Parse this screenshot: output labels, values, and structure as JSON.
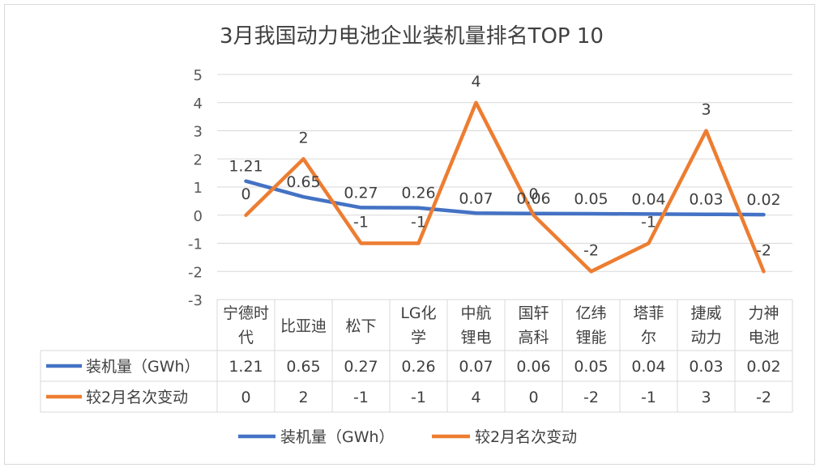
{
  "chart_data": {
    "type": "line",
    "title": "3月我国动力电池企业装机量排名TOP 10",
    "categories": [
      [
        "宁德时",
        "代"
      ],
      [
        "比亚迪"
      ],
      [
        "松下"
      ],
      [
        "LG化",
        "学"
      ],
      [
        "中航",
        "锂电"
      ],
      [
        "国轩",
        "高科"
      ],
      [
        "亿纬",
        "锂能"
      ],
      [
        "塔菲",
        "尔"
      ],
      [
        "捷威",
        "动力"
      ],
      [
        "力神",
        "电池"
      ]
    ],
    "series": [
      {
        "name": "装机量（GWh）",
        "color": "#4472C4",
        "values": [
          1.21,
          0.65,
          0.27,
          0.26,
          0.07,
          0.06,
          0.05,
          0.04,
          0.03,
          0.02
        ],
        "labels": [
          "1.21",
          "0.65",
          "0.27",
          "0.26",
          "0.07",
          "0.06",
          "0.05",
          "0.04",
          "0.03",
          "0.02"
        ]
      },
      {
        "name": "较2月名次变动",
        "color": "#ED7D31",
        "values": [
          0,
          2,
          -1,
          -1,
          4,
          0,
          -2,
          -1,
          3,
          -2
        ],
        "labels": [
          "0",
          "2",
          "-1",
          "-1",
          "4",
          "0",
          "-2",
          "-1",
          "3",
          "-2"
        ]
      }
    ],
    "ylim": [
      -3,
      5
    ],
    "yticks": [
      5,
      4,
      3,
      2,
      1,
      0,
      -1,
      -2,
      -3
    ],
    "grid": true,
    "legend_position": "bottom",
    "data_table": true
  }
}
